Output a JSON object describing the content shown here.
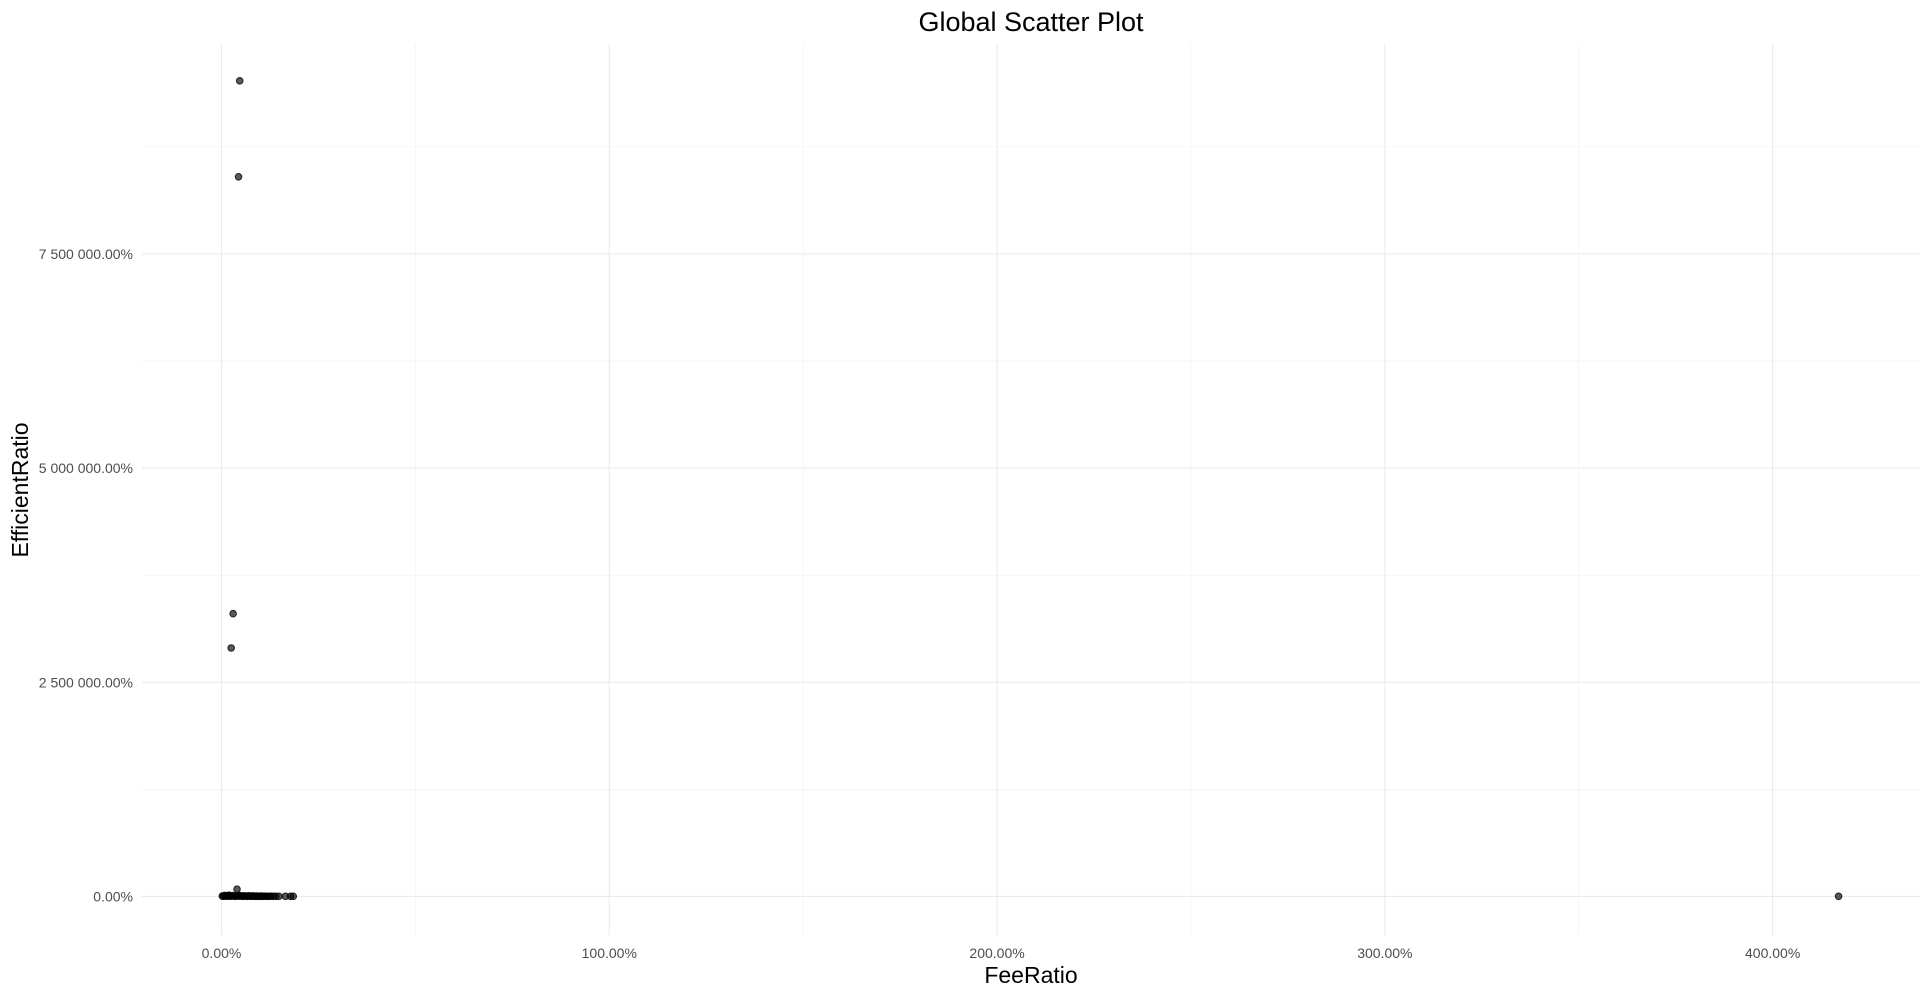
{
  "chart_data": {
    "type": "scatter",
    "title": "Global Scatter Plot",
    "xlabel": "FeeRatio",
    "ylabel": "EfficientRatio",
    "xlim": [
      -0.205,
      4.38
    ],
    "ylim": [
      -450000,
      9950000
    ],
    "x_ticks": [
      {
        "value": 0,
        "label": "0.00%"
      },
      {
        "value": 1,
        "label": "100.00%"
      },
      {
        "value": 2,
        "label": "200.00%"
      },
      {
        "value": 3,
        "label": "300.00%"
      },
      {
        "value": 4,
        "label": "400.00%"
      }
    ],
    "x_minor_ticks": [
      0.5,
      1.5,
      2.5,
      3.5
    ],
    "y_ticks": [
      {
        "value": 0,
        "label": "0.00%"
      },
      {
        "value": 25000,
        "label": "2 500 000.00%"
      },
      {
        "value": 50000,
        "label": "5 000 000.00%"
      },
      {
        "value": 75000,
        "label": "7 500 000.00%"
      }
    ],
    "y_tick_scale": 100,
    "y_minor_ticks": [
      1250000,
      3750000,
      6250000,
      8750000
    ],
    "grid": true,
    "legend": "none",
    "point_color": "#000000",
    "series": [
      {
        "points": [
          [
            0.047,
            9520000
          ],
          [
            0.044,
            8400000
          ],
          [
            0.03,
            3300000
          ],
          [
            0.025,
            2900000
          ],
          [
            0.04,
            85000
          ],
          [
            0.002,
            5000
          ],
          [
            0.005,
            2000
          ],
          [
            0.008,
            12000
          ],
          [
            0.01,
            4000
          ],
          [
            0.013,
            8000
          ],
          [
            0.016,
            1000
          ],
          [
            0.019,
            15000
          ],
          [
            0.022,
            6000
          ],
          [
            0.025,
            3000
          ],
          [
            0.028,
            10000
          ],
          [
            0.031,
            7000
          ],
          [
            0.034,
            2000
          ],
          [
            0.037,
            5000
          ],
          [
            0.04,
            9000
          ],
          [
            0.043,
            3000
          ],
          [
            0.046,
            11000
          ],
          [
            0.049,
            4000
          ],
          [
            0.052,
            6000
          ],
          [
            0.055,
            2000
          ],
          [
            0.058,
            8000
          ],
          [
            0.061,
            3000
          ],
          [
            0.064,
            5000
          ],
          [
            0.067,
            1000
          ],
          [
            0.07,
            7000
          ],
          [
            0.073,
            4000
          ],
          [
            0.076,
            2000
          ],
          [
            0.079,
            6000
          ],
          [
            0.082,
            3000
          ],
          [
            0.085,
            5000
          ],
          [
            0.088,
            2000
          ],
          [
            0.091,
            4000
          ],
          [
            0.094,
            1000
          ],
          [
            0.097,
            3000
          ],
          [
            0.1,
            2000
          ],
          [
            0.104,
            4000
          ],
          [
            0.108,
            1000
          ],
          [
            0.112,
            3000
          ],
          [
            0.117,
            2000
          ],
          [
            0.122,
            1000
          ],
          [
            0.127,
            3000
          ],
          [
            0.133,
            1000
          ],
          [
            0.14,
            2000
          ],
          [
            0.148,
            1000
          ],
          [
            0.165,
            1000
          ],
          [
            0.178,
            2000
          ],
          [
            0.185,
            1000
          ],
          [
            4.17,
            2000
          ]
        ]
      }
    ]
  }
}
